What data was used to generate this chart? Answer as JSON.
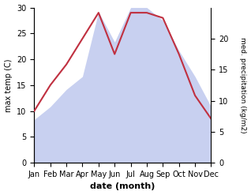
{
  "months": [
    "Jan",
    "Feb",
    "Mar",
    "Apr",
    "May",
    "Jun",
    "Jul",
    "Aug",
    "Sep",
    "Oct",
    "Nov",
    "Dec"
  ],
  "temperature": [
    10,
    15,
    19,
    24,
    29,
    21,
    29,
    29,
    28,
    21,
    13,
    8.5
  ],
  "precipitation": [
    10,
    13,
    17,
    20,
    35,
    28,
    36,
    36,
    33,
    26,
    20,
    13
  ],
  "temp_color": "#c03040",
  "precip_fill_color": "#c8d0f0",
  "temp_ylim": [
    0,
    30
  ],
  "precip_ylim_data": [
    0,
    36
  ],
  "precip_display_max": 25,
  "left_ticks": [
    0,
    5,
    10,
    15,
    20,
    25,
    30
  ],
  "right_display_ticks": [
    0,
    5,
    10,
    15,
    20
  ],
  "ylabel_left": "max temp (C)",
  "ylabel_right": "med. precipitation (kg/m2)",
  "xlabel": "date (month)"
}
